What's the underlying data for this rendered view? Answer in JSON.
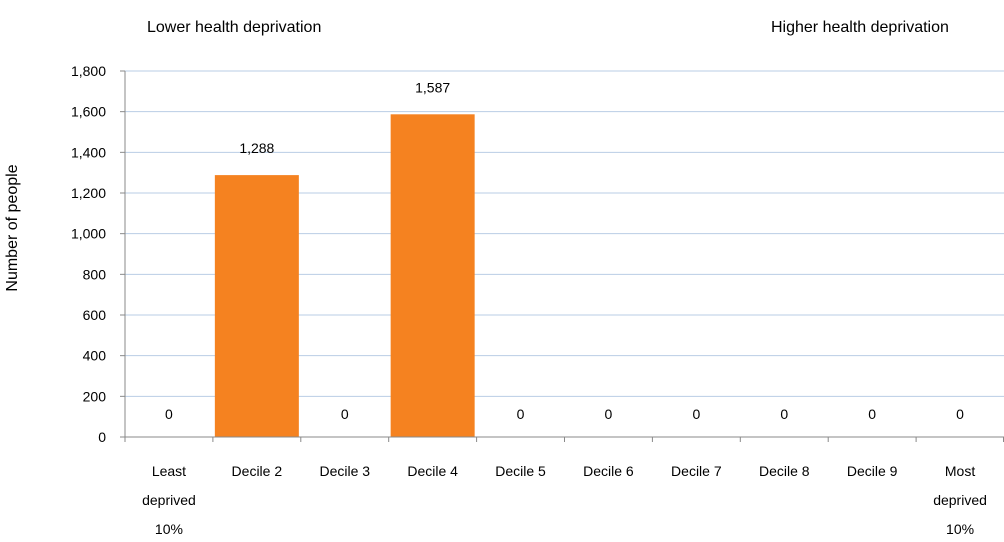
{
  "chart_data": {
    "type": "bar",
    "ylabel": "Number of people",
    "left_annotation": "Lower health deprivation",
    "right_annotation": "Higher health deprivation",
    "categories": [
      [
        "Least",
        "deprived",
        "10%"
      ],
      [
        "Decile 2"
      ],
      [
        "Decile 3"
      ],
      [
        "Decile 4"
      ],
      [
        "Decile 5"
      ],
      [
        "Decile 6"
      ],
      [
        "Decile 7"
      ],
      [
        "Decile 8"
      ],
      [
        "Decile 9"
      ],
      [
        "Most",
        "deprived",
        "10%"
      ]
    ],
    "values": [
      0,
      1288,
      0,
      1587,
      0,
      0,
      0,
      0,
      0,
      0
    ],
    "data_labels": [
      "0",
      "1,288",
      "0",
      "1,587",
      "0",
      "0",
      "0",
      "0",
      "0",
      "0"
    ],
    "yticks": [
      0,
      200,
      400,
      600,
      800,
      1000,
      1200,
      1400,
      1600,
      1800
    ],
    "ytick_labels": [
      "0",
      "200",
      "400",
      "600",
      "800",
      "1,000",
      "1,200",
      "1,400",
      "1,600",
      "1,800"
    ],
    "ylim": [
      0,
      1800
    ],
    "grid": true,
    "legend": "none",
    "colors": {
      "bar": "#F58220",
      "grid": "#B9CDE5",
      "axis": "#898989"
    }
  }
}
